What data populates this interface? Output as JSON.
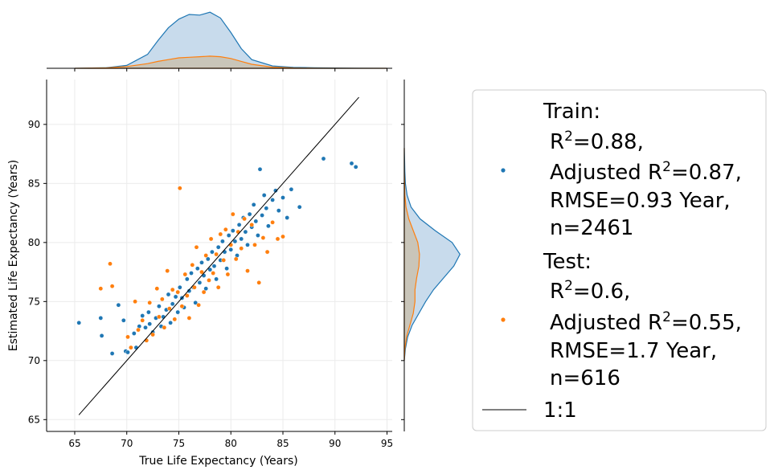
{
  "chart_data": {
    "type": "scatter",
    "title": "",
    "xlabel": "True Life Expectancy (Years)",
    "ylabel": "Estimated Life Expectancy (Years)",
    "xlim": [
      62.3,
      95.5
    ],
    "ylim": [
      64,
      93.8
    ],
    "xticks": [
      65,
      70,
      75,
      80,
      85,
      90,
      95
    ],
    "yticks": [
      65,
      70,
      75,
      80,
      85,
      90
    ],
    "grid": true,
    "legend_position": "right, outside",
    "colors": {
      "train": "#1f77b4",
      "test": "#ff7f0e",
      "line": "#000000",
      "train_kde_fill": "#c2d7ea",
      "test_kde_fill": "#c9c2b4"
    },
    "reference_line": {
      "name": "1:1",
      "label": "1:1",
      "from": [
        65.4,
        65.4
      ],
      "to": [
        92.3,
        92.3
      ]
    },
    "series": [
      {
        "name": "Train",
        "legend_lines": [
          "Train:",
          "R²=0.88,",
          "Adjusted R²=0.87,",
          "RMSE=0.93 Year,",
          "n=2461"
        ],
        "points": [
          [
            65.4,
            73.2
          ],
          [
            67.5,
            73.6
          ],
          [
            67.6,
            72.1
          ],
          [
            68.6,
            70.6
          ],
          [
            69.2,
            74.7
          ],
          [
            69.7,
            73.4
          ],
          [
            69.9,
            70.8
          ],
          [
            70.1,
            70.7
          ],
          [
            70.7,
            72.3
          ],
          [
            70.9,
            71.1
          ],
          [
            71.2,
            72.9
          ],
          [
            71.5,
            73.8
          ],
          [
            71.8,
            72.8
          ],
          [
            72.1,
            74.1
          ],
          [
            72.2,
            73.1
          ],
          [
            72.5,
            72.4
          ],
          [
            72.8,
            73.6
          ],
          [
            73.1,
            74.6
          ],
          [
            73.3,
            72.9
          ],
          [
            73.5,
            73.7
          ],
          [
            73.8,
            74.3
          ],
          [
            74.0,
            75.6
          ],
          [
            74.2,
            73.2
          ],
          [
            74.4,
            74.8
          ],
          [
            74.7,
            75.4
          ],
          [
            74.9,
            74.1
          ],
          [
            75.1,
            76.2
          ],
          [
            75.3,
            75.3
          ],
          [
            75.5,
            74.5
          ],
          [
            75.8,
            76.9
          ],
          [
            76.0,
            75.9
          ],
          [
            76.2,
            77.4
          ],
          [
            76.4,
            76.2
          ],
          [
            76.6,
            74.9
          ],
          [
            76.8,
            77.8
          ],
          [
            77.0,
            76.6
          ],
          [
            77.2,
            78.3
          ],
          [
            77.4,
            77.2
          ],
          [
            77.6,
            76.1
          ],
          [
            77.8,
            78.6
          ],
          [
            78.0,
            77.7
          ],
          [
            78.2,
            79.2
          ],
          [
            78.4,
            78.0
          ],
          [
            78.6,
            76.9
          ],
          [
            78.8,
            79.6
          ],
          [
            79.0,
            78.5
          ],
          [
            79.2,
            80.1
          ],
          [
            79.4,
            79.2
          ],
          [
            79.6,
            77.8
          ],
          [
            79.8,
            80.6
          ],
          [
            80.0,
            79.4
          ],
          [
            80.2,
            81.0
          ],
          [
            80.4,
            80.1
          ],
          [
            80.6,
            78.9
          ],
          [
            80.8,
            81.5
          ],
          [
            81.0,
            80.3
          ],
          [
            81.2,
            82.1
          ],
          [
            81.4,
            80.9
          ],
          [
            81.6,
            79.8
          ],
          [
            81.8,
            82.4
          ],
          [
            82.0,
            81.3
          ],
          [
            82.2,
            83.2
          ],
          [
            82.4,
            81.8
          ],
          [
            82.6,
            80.6
          ],
          [
            82.8,
            86.2
          ],
          [
            83.0,
            82.3
          ],
          [
            83.2,
            84.0
          ],
          [
            83.4,
            82.9
          ],
          [
            83.6,
            81.4
          ],
          [
            84.0,
            83.6
          ],
          [
            84.3,
            84.4
          ],
          [
            84.6,
            82.7
          ],
          [
            85.0,
            83.8
          ],
          [
            85.4,
            82.1
          ],
          [
            85.8,
            84.5
          ],
          [
            86.6,
            83.0
          ],
          [
            88.9,
            87.1
          ],
          [
            91.6,
            86.7
          ],
          [
            92.0,
            86.4
          ]
        ]
      },
      {
        "name": "Test",
        "legend_lines": [
          "Test:",
          "R²=0.6,",
          "Adjusted R²=0.55,",
          "RMSE=1.7 Year,",
          "n=616"
        ],
        "points": [
          [
            67.5,
            76.1
          ],
          [
            68.4,
            78.2
          ],
          [
            68.6,
            76.3
          ],
          [
            70.1,
            72.0
          ],
          [
            70.4,
            71.1
          ],
          [
            70.8,
            75.0
          ],
          [
            71.1,
            72.6
          ],
          [
            71.5,
            73.4
          ],
          [
            71.9,
            71.7
          ],
          [
            72.2,
            74.9
          ],
          [
            72.5,
            72.2
          ],
          [
            72.9,
            76.1
          ],
          [
            73.1,
            73.7
          ],
          [
            73.4,
            75.2
          ],
          [
            73.6,
            72.8
          ],
          [
            73.9,
            77.6
          ],
          [
            74.1,
            74.4
          ],
          [
            74.4,
            76.0
          ],
          [
            74.6,
            73.5
          ],
          [
            74.9,
            75.8
          ],
          [
            75.1,
            84.6
          ],
          [
            75.3,
            74.6
          ],
          [
            75.6,
            77.3
          ],
          [
            75.8,
            75.5
          ],
          [
            76.0,
            73.6
          ],
          [
            76.3,
            78.1
          ],
          [
            76.5,
            76.2
          ],
          [
            76.7,
            79.6
          ],
          [
            76.9,
            74.7
          ],
          [
            77.2,
            77.5
          ],
          [
            77.4,
            75.8
          ],
          [
            77.6,
            78.9
          ],
          [
            77.9,
            76.8
          ],
          [
            78.1,
            80.3
          ],
          [
            78.3,
            77.4
          ],
          [
            78.6,
            79.0
          ],
          [
            78.8,
            76.2
          ],
          [
            79.0,
            80.7
          ],
          [
            79.3,
            78.5
          ],
          [
            79.5,
            81.1
          ],
          [
            79.7,
            77.3
          ],
          [
            80.0,
            79.8
          ],
          [
            80.2,
            82.4
          ],
          [
            80.5,
            78.6
          ],
          [
            80.7,
            80.9
          ],
          [
            81.0,
            79.5
          ],
          [
            81.3,
            82.0
          ],
          [
            81.6,
            77.6
          ],
          [
            82.0,
            81.5
          ],
          [
            82.3,
            79.8
          ],
          [
            82.7,
            76.6
          ],
          [
            83.1,
            80.4
          ],
          [
            83.5,
            79.2
          ],
          [
            84.0,
            81.7
          ],
          [
            84.5,
            80.3
          ],
          [
            85.0,
            80.5
          ]
        ]
      }
    ],
    "marginal_x": {
      "grid": [
        65,
        68,
        70,
        72,
        73,
        74,
        75,
        76,
        77,
        78,
        79,
        80,
        81,
        82,
        84,
        86,
        88,
        92,
        95
      ],
      "train": [
        0,
        0.01,
        0.05,
        0.24,
        0.48,
        0.7,
        0.85,
        0.93,
        0.92,
        0.97,
        0.87,
        0.62,
        0.34,
        0.15,
        0.04,
        0.015,
        0.01,
        0.003,
        0
      ],
      "test": [
        0,
        0.005,
        0.03,
        0.08,
        0.12,
        0.15,
        0.18,
        0.19,
        0.2,
        0.21,
        0.2,
        0.17,
        0.12,
        0.07,
        0.02,
        0.005,
        0.002,
        0,
        0
      ]
    },
    "marginal_y": {
      "grid": [
        70,
        71,
        72,
        73,
        74,
        75,
        76,
        77,
        78,
        79,
        80,
        81,
        82,
        83,
        84,
        85,
        86,
        87,
        88
      ],
      "train": [
        0,
        0.02,
        0.06,
        0.14,
        0.26,
        0.38,
        0.52,
        0.7,
        0.88,
        0.99,
        0.85,
        0.55,
        0.28,
        0.12,
        0.05,
        0.02,
        0.01,
        0.005,
        0
      ],
      "test": [
        0,
        0.01,
        0.04,
        0.1,
        0.16,
        0.19,
        0.19,
        0.22,
        0.26,
        0.27,
        0.24,
        0.16,
        0.08,
        0.03,
        0.01,
        0.005,
        0,
        0,
        0
      ]
    }
  }
}
